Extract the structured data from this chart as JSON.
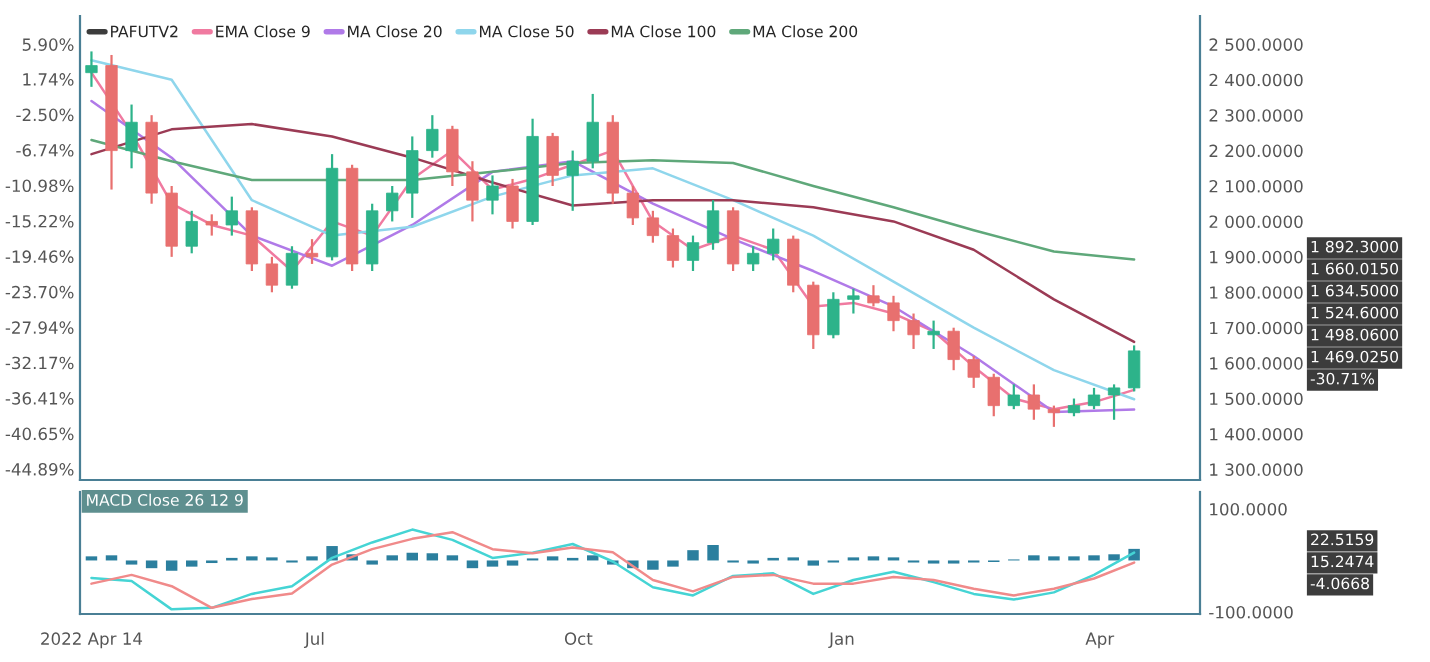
{
  "chart_data": [
    {
      "type": "candlestick",
      "legend": "top left",
      "tick_labels": "y",
      "series": [
        {
          "name": "PAFUTV2",
          "type": "candlestick",
          "color": "#3c3c3c",
          "x": [
            "2022-04-14",
            "2022-04-21",
            "2022-04-28",
            "2022-05-05",
            "2022-05-12",
            "2022-05-19",
            "2022-05-26",
            "2022-06-02",
            "2022-06-09",
            "2022-06-16",
            "2022-06-23",
            "2022-06-30",
            "2022-07-07",
            "2022-07-14",
            "2022-07-21",
            "2022-07-28",
            "2022-08-04",
            "2022-08-11",
            "2022-08-18",
            "2022-08-25",
            "2022-09-01",
            "2022-09-08",
            "2022-09-15",
            "2022-09-22",
            "2022-09-29",
            "2022-10-06",
            "2022-10-13",
            "2022-10-20",
            "2022-10-27",
            "2022-11-03",
            "2022-11-10",
            "2022-11-17",
            "2022-11-24",
            "2022-12-01",
            "2022-12-08",
            "2022-12-15",
            "2022-12-22",
            "2022-12-29",
            "2023-01-05",
            "2023-01-12",
            "2023-01-19",
            "2023-01-26",
            "2023-02-02",
            "2023-02-09",
            "2023-02-16",
            "2023-02-23",
            "2023-03-02",
            "2023-03-09",
            "2023-03-16",
            "2023-03-23",
            "2023-03-30",
            "2023-04-06",
            "2023-04-13"
          ],
          "ohlc": [
            [
              2420,
              2480,
              2380,
              2440
            ],
            [
              2440,
              2470,
              2090,
              2200
            ],
            [
              2200,
              2330,
              2150,
              2280
            ],
            [
              2280,
              2300,
              2050,
              2080
            ],
            [
              2080,
              2100,
              1900,
              1930
            ],
            [
              1930,
              2030,
              1910,
              2000
            ],
            [
              2000,
              2020,
              1960,
              1990
            ],
            [
              1990,
              2070,
              1960,
              2030
            ],
            [
              2030,
              2040,
              1860,
              1880
            ],
            [
              1880,
              1900,
              1800,
              1820
            ],
            [
              1820,
              1930,
              1810,
              1910
            ],
            [
              1910,
              1950,
              1880,
              1900
            ],
            [
              1900,
              2190,
              1890,
              2150
            ],
            [
              2150,
              2160,
              1860,
              1880
            ],
            [
              1880,
              2050,
              1860,
              2030
            ],
            [
              2030,
              2100,
              2000,
              2080
            ],
            [
              2080,
              2240,
              2010,
              2200
            ],
            [
              2200,
              2300,
              2180,
              2260
            ],
            [
              2260,
              2270,
              2100,
              2140
            ],
            [
              2140,
              2170,
              2000,
              2060
            ],
            [
              2060,
              2130,
              2020,
              2100
            ],
            [
              2100,
              2120,
              1980,
              2000
            ],
            [
              2000,
              2290,
              1990,
              2240
            ],
            [
              2240,
              2250,
              2100,
              2130
            ],
            [
              2130,
              2200,
              2030,
              2170
            ],
            [
              2170,
              2360,
              2150,
              2280
            ],
            [
              2280,
              2300,
              2050,
              2080
            ],
            [
              2080,
              2100,
              1990,
              2010
            ],
            [
              2010,
              2030,
              1940,
              1960
            ],
            [
              1960,
              1980,
              1870,
              1890
            ],
            [
              1890,
              1960,
              1860,
              1940
            ],
            [
              1940,
              2060,
              1920,
              2030
            ],
            [
              2030,
              2040,
              1860,
              1880
            ],
            [
              1880,
              1930,
              1860,
              1910
            ],
            [
              1910,
              1980,
              1890,
              1950
            ],
            [
              1950,
              1960,
              1800,
              1820
            ],
            [
              1820,
              1830,
              1640,
              1680
            ],
            [
              1680,
              1800,
              1670,
              1780
            ],
            [
              1780,
              1810,
              1740,
              1790
            ],
            [
              1790,
              1820,
              1760,
              1770
            ],
            [
              1770,
              1790,
              1690,
              1720
            ],
            [
              1720,
              1740,
              1640,
              1680
            ],
            [
              1680,
              1720,
              1640,
              1690
            ],
            [
              1690,
              1700,
              1580,
              1610
            ],
            [
              1610,
              1620,
              1530,
              1560
            ],
            [
              1560,
              1570,
              1450,
              1480
            ],
            [
              1480,
              1540,
              1470,
              1510
            ],
            [
              1510,
              1540,
              1440,
              1470
            ],
            [
              1470,
              1480,
              1420,
              1460
            ],
            [
              1460,
              1500,
              1450,
              1480
            ],
            [
              1480,
              1530,
              1470,
              1510
            ],
            [
              1510,
              1540,
              1440,
              1530
            ],
            [
              1530,
              1650,
              1520,
              1634.5
            ]
          ],
          "colors": [
            "#2db38a",
            "#e8706f",
            "#2db38a",
            "#e8706f",
            "#e8706f",
            "#2db38a",
            "#e8706f",
            "#2db38a",
            "#e8706f",
            "#e8706f",
            "#2db38a",
            "#e8706f",
            "#2db38a",
            "#e8706f",
            "#2db38a",
            "#2db38a",
            "#2db38a",
            "#2db38a",
            "#e8706f",
            "#e8706f",
            "#2db38a",
            "#e8706f",
            "#2db38a",
            "#e8706f",
            "#2db38a",
            "#2db38a",
            "#e8706f",
            "#e8706f",
            "#e8706f",
            "#e8706f",
            "#2db38a",
            "#2db38a",
            "#e8706f",
            "#2db38a",
            "#2db38a",
            "#e8706f",
            "#e8706f",
            "#2db38a",
            "#2db38a",
            "#e8706f",
            "#e8706f",
            "#e8706f",
            "#2db38a",
            "#e8706f",
            "#e8706f",
            "#e8706f",
            "#2db38a",
            "#e8706f",
            "#e8706f",
            "#2db38a",
            "#2db38a",
            "#2db38a",
            "#2db38a"
          ]
        },
        {
          "name": "EMA Close 9",
          "type": "line",
          "color": "#f07aa0",
          "x": [
            "2022-04-14",
            "2022-04-28",
            "2022-05-12",
            "2022-05-26",
            "2022-06-09",
            "2022-06-23",
            "2022-07-07",
            "2022-07-21",
            "2022-08-04",
            "2022-08-18",
            "2022-09-01",
            "2022-09-15",
            "2022-09-29",
            "2022-10-13",
            "2022-10-27",
            "2022-11-10",
            "2022-11-24",
            "2022-12-08",
            "2022-12-22",
            "2023-01-05",
            "2023-01-19",
            "2023-02-02",
            "2023-02-16",
            "2023-03-02",
            "2023-03-16",
            "2023-03-30",
            "2023-04-13"
          ],
          "values": [
            2420,
            2250,
            2050,
            1990,
            1960,
            1860,
            2000,
            1960,
            2120,
            2200,
            2090,
            2120,
            2160,
            2200,
            2000,
            1920,
            1960,
            1920,
            1760,
            1770,
            1740,
            1690,
            1590,
            1500,
            1470,
            1490,
            1524.6
          ]
        },
        {
          "name": "MA Close 20",
          "type": "line",
          "color": "#b07ae8",
          "x": [
            "2022-04-14",
            "2022-05-12",
            "2022-06-09",
            "2022-07-07",
            "2022-08-04",
            "2022-09-01",
            "2022-09-29",
            "2022-10-27",
            "2022-11-24",
            "2022-12-22",
            "2023-01-19",
            "2023-02-16",
            "2023-03-16",
            "2023-04-13"
          ],
          "values": [
            2340,
            2180,
            1960,
            1875,
            1990,
            2140,
            2170,
            2050,
            1950,
            1860,
            1760,
            1620,
            1462,
            1469.025
          ]
        },
        {
          "name": "MA Close 50",
          "type": "line",
          "color": "#8fd6ec",
          "x": [
            "2022-04-14",
            "2022-05-12",
            "2022-06-09",
            "2022-07-07",
            "2022-08-04",
            "2022-09-01",
            "2022-09-29",
            "2022-10-27",
            "2022-11-24",
            "2022-12-22",
            "2023-01-19",
            "2023-02-16",
            "2023-03-16",
            "2023-04-13"
          ],
          "values": [
            2455,
            2400,
            2060,
            1960,
            1985,
            2070,
            2130,
            2150,
            2060,
            1960,
            1830,
            1700,
            1580,
            1498.06
          ]
        },
        {
          "name": "MA Close 100",
          "type": "line",
          "color": "#9b3b55",
          "x": [
            "2022-04-14",
            "2022-05-12",
            "2022-06-09",
            "2022-07-07",
            "2022-08-04",
            "2022-09-01",
            "2022-09-29",
            "2022-10-27",
            "2022-11-24",
            "2022-12-22",
            "2023-01-19",
            "2023-02-16",
            "2023-03-16",
            "2023-04-13"
          ],
          "values": [
            2190,
            2260,
            2275,
            2240,
            2180,
            2110,
            2045,
            2060,
            2060,
            2040,
            2000,
            1920,
            1780,
            1660.015
          ]
        },
        {
          "name": "MA Close 200",
          "type": "line",
          "color": "#5fa87a",
          "x": [
            "2022-04-14",
            "2022-05-12",
            "2022-06-09",
            "2022-07-07",
            "2022-08-04",
            "2022-09-01",
            "2022-09-29",
            "2022-10-27",
            "2022-11-24",
            "2022-12-22",
            "2023-01-19",
            "2023-02-16",
            "2023-03-16",
            "2023-04-13"
          ],
          "values": [
            2230,
            2170,
            2117,
            2117,
            2117,
            2140,
            2165,
            2173,
            2165,
            2100,
            2040,
            1975,
            1915,
            1892.3
          ]
        }
      ],
      "xlim": [
        "2022-04-10",
        "2023-05-06"
      ],
      "ylim": [
        1270,
        2580
      ],
      "yticks": [
        {
          "value": 1300,
          "label": "1 300.0000"
        },
        {
          "value": 1400,
          "label": "1 400.0000"
        },
        {
          "value": 1500,
          "label": "1 500.0000"
        },
        {
          "value": 1600,
          "label": "1 600.0000"
        },
        {
          "value": 1700,
          "label": "1 700.0000"
        },
        {
          "value": 1800,
          "label": "1 800.0000"
        },
        {
          "value": 1900,
          "label": "1 900.0000"
        },
        {
          "value": 2000,
          "label": "2 000.0000"
        },
        {
          "value": 2100,
          "label": "2 100.0000"
        },
        {
          "value": 2200,
          "label": "2 200.0000"
        },
        {
          "value": 2300,
          "label": "2 300.0000"
        },
        {
          "value": 2400,
          "label": "2 400.0000"
        },
        {
          "value": 2500,
          "label": "2 500.0000"
        }
      ],
      "y2lim": [
        -46.2,
        9.29
      ],
      "y2ticks": [
        {
          "value": 5.9,
          "label": "5.90%"
        },
        {
          "value": 1.74,
          "label": "1.74%"
        },
        {
          "value": -2.5,
          "label": "-2.50%"
        },
        {
          "value": -6.74,
          "label": "-6.74%"
        },
        {
          "value": -10.98,
          "label": "-10.98%"
        },
        {
          "value": -15.22,
          "label": "-15.22%"
        },
        {
          "value": -19.46,
          "label": "-19.46%"
        },
        {
          "value": -23.7,
          "label": "-23.70%"
        },
        {
          "value": -27.94,
          "label": "-27.94%"
        },
        {
          "value": -32.17,
          "label": "-32.17%"
        },
        {
          "value": -36.41,
          "label": "-36.41%"
        },
        {
          "value": -40.65,
          "label": "-40.65%"
        },
        {
          "value": -44.89,
          "label": "-44.89%"
        }
      ],
      "annotations": [
        "1 892.3000",
        "1 660.0150",
        "1 634.5000",
        "1 524.6000",
        "1 498.0600",
        "1 469.0250",
        "-30.71%"
      ]
    },
    {
      "type": "bar",
      "title": "MACD Close 26 12 9",
      "series": [
        {
          "type": "bar",
          "color": "#2b7f9e",
          "x": [
            "2022-04-14",
            "2022-04-21",
            "2022-04-28",
            "2022-05-05",
            "2022-05-12",
            "2022-05-19",
            "2022-05-26",
            "2022-06-02",
            "2022-06-09",
            "2022-06-16",
            "2022-06-23",
            "2022-06-30",
            "2022-07-07",
            "2022-07-14",
            "2022-07-21",
            "2022-07-28",
            "2022-08-04",
            "2022-08-11",
            "2022-08-18",
            "2022-08-25",
            "2022-09-01",
            "2022-09-08",
            "2022-09-15",
            "2022-09-22",
            "2022-09-29",
            "2022-10-06",
            "2022-10-13",
            "2022-10-20",
            "2022-10-27",
            "2022-11-03",
            "2022-11-10",
            "2022-11-17",
            "2022-11-24",
            "2022-12-01",
            "2022-12-08",
            "2022-12-15",
            "2022-12-22",
            "2022-12-29",
            "2023-01-05",
            "2023-01-12",
            "2023-01-19",
            "2023-01-26",
            "2023-02-02",
            "2023-02-09",
            "2023-02-16",
            "2023-02-23",
            "2023-03-02",
            "2023-03-09",
            "2023-03-16",
            "2023-03-23",
            "2023-03-30",
            "2023-04-06",
            "2023-04-13"
          ],
          "values": [
            8,
            10,
            -8,
            -15,
            -20,
            -12,
            -5,
            5,
            8,
            6,
            -4,
            8,
            28,
            12,
            -8,
            10,
            15,
            14,
            10,
            -15,
            -12,
            -10,
            4,
            8,
            5,
            10,
            -8,
            -15,
            -18,
            -12,
            20,
            30,
            -4,
            -6,
            5,
            6,
            -10,
            -4,
            6,
            8,
            6,
            -4,
            -6,
            -6,
            -4,
            -3,
            2,
            10,
            8,
            8,
            10,
            12,
            22.5159
          ]
        },
        {
          "type": "line",
          "color": "#45d4d4",
          "x": [
            "2022-04-14",
            "2022-04-28",
            "2022-05-12",
            "2022-05-26",
            "2022-06-09",
            "2022-06-23",
            "2022-07-07",
            "2022-07-21",
            "2022-08-04",
            "2022-08-18",
            "2022-09-01",
            "2022-09-15",
            "2022-09-29",
            "2022-10-13",
            "2022-10-27",
            "2022-11-10",
            "2022-11-24",
            "2022-12-08",
            "2022-12-22",
            "2023-01-05",
            "2023-01-19",
            "2023-02-02",
            "2023-02-16",
            "2023-03-02",
            "2023-03-16",
            "2023-03-30",
            "2023-04-13"
          ],
          "values": [
            -34,
            -40,
            -95,
            -92,
            -65,
            -50,
            5,
            35,
            60,
            40,
            5,
            15,
            32,
            -2,
            -52,
            -68,
            -30,
            -25,
            -65,
            -38,
            -22,
            -42,
            -65,
            -76,
            -62,
            -28,
            15.2474
          ]
        },
        {
          "type": "line",
          "color": "#f08a8a",
          "x": [
            "2022-04-14",
            "2022-04-28",
            "2022-05-12",
            "2022-05-26",
            "2022-06-09",
            "2022-06-23",
            "2022-07-07",
            "2022-07-21",
            "2022-08-04",
            "2022-08-18",
            "2022-09-01",
            "2022-09-15",
            "2022-09-29",
            "2022-10-13",
            "2022-10-27",
            "2022-11-10",
            "2022-11-24",
            "2022-12-08",
            "2022-12-22",
            "2023-01-05",
            "2023-01-19",
            "2023-02-02",
            "2023-02-16",
            "2023-03-02",
            "2023-03-16",
            "2023-03-30",
            "2023-04-13"
          ],
          "values": [
            -45,
            -28,
            -50,
            -92,
            -75,
            -64,
            -8,
            22,
            42,
            55,
            22,
            14,
            25,
            16,
            -38,
            -60,
            -32,
            -28,
            -45,
            -45,
            -32,
            -38,
            -55,
            -68,
            -55,
            -35,
            -4.0668
          ]
        }
      ],
      "xlim": [
        "2022-04-10",
        "2023-05-06"
      ],
      "xticks": [
        {
          "value": "2022-04-14",
          "label": "2022 Apr 14"
        },
        {
          "value": "2022-07-01",
          "label": "Jul"
        },
        {
          "value": "2022-10-01",
          "label": "Oct"
        },
        {
          "value": "2023-01-01",
          "label": "Jan"
        },
        {
          "value": "2023-04-01",
          "label": "Apr"
        }
      ],
      "ylim": [
        -104,
        133
      ],
      "yticks": [
        {
          "value": 100,
          "label": "100.0000"
        },
        {
          "value": -100,
          "label": "-100.0000"
        }
      ],
      "annotations": [
        "22.5159",
        "15.2474",
        "-4.0668"
      ]
    }
  ]
}
